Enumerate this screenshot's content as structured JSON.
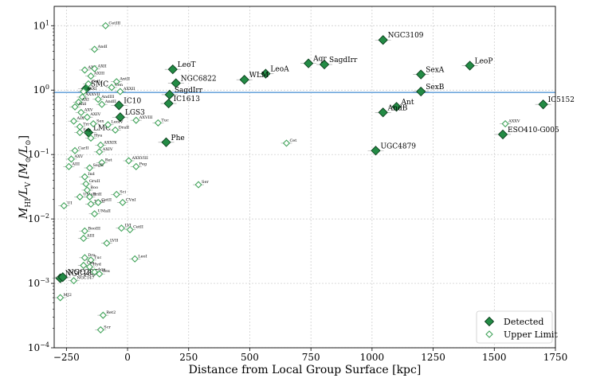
{
  "chart_data": {
    "type": "scatter",
    "xlabel": "Distance from Local Group Surface [kpc]",
    "ylabel_parts": [
      "M",
      "HI",
      "/L",
      "V",
      " [M",
      "⊙",
      "/L",
      "⊙",
      "]"
    ],
    "xlim": [
      -300,
      1750
    ],
    "ylim_log10": [
      -4,
      1.3
    ],
    "x_ticks": [
      -250,
      0,
      250,
      500,
      750,
      1000,
      1250,
      1500,
      1750
    ],
    "y_ticks": [
      {
        "exp": -4,
        "label_base": "10",
        "label_exp": "−4"
      },
      {
        "exp": -3,
        "label_base": "10",
        "label_exp": "−3"
      },
      {
        "exp": -2,
        "label_base": "10",
        "label_exp": "−2"
      },
      {
        "exp": -1,
        "label_base": "10",
        "label_exp": "−1"
      },
      {
        "exp": 0,
        "label_base": "10",
        "label_exp": "0"
      },
      {
        "exp": 1,
        "label_base": "10",
        "label_exp": "1"
      }
    ],
    "reference_line_y": 0.92,
    "grid": true,
    "legend_position": "bottom-right",
    "colors": {
      "detected_fill": "#238b45",
      "detected_edge": "#0b3d1c",
      "limit_edge": "#41a35a",
      "reference_line": "#6fa8dc",
      "error_bar": "#999999"
    },
    "series": [
      {
        "name": "Detected",
        "marker": "filled-diamond",
        "points": [
          {
            "label": "NGC3109",
            "x": 1045,
            "y": 6.0
          },
          {
            "label": "LeoP",
            "x": 1400,
            "y": 2.4
          },
          {
            "label": "SagdIrr",
            "x": 805,
            "y": 2.5
          },
          {
            "label": "Aqr",
            "x": 740,
            "y": 2.6
          },
          {
            "label": "LeoA",
            "x": 565,
            "y": 1.8
          },
          {
            "label": "WLM",
            "x": 478,
            "y": 1.45
          },
          {
            "label": "SexA",
            "x": 1200,
            "y": 1.75
          },
          {
            "label": "SexB",
            "x": 1200,
            "y": 0.95
          },
          {
            "label": "LeoT",
            "x": 185,
            "y": 2.1
          },
          {
            "label": "NGC6822",
            "x": 198,
            "y": 1.28
          },
          {
            "label": "SagdIrr",
            "x": 172,
            "y": 0.85
          },
          {
            "label": "IC1613",
            "x": 168,
            "y": 0.62
          },
          {
            "label": "Phe",
            "x": 158,
            "y": 0.155
          },
          {
            "label": "IC10",
            "x": -35,
            "y": 0.58
          },
          {
            "label": "LGS3",
            "x": -30,
            "y": 0.38
          },
          {
            "label": "SMC",
            "x": -170,
            "y": 1.05
          },
          {
            "label": "LMC",
            "x": -160,
            "y": 0.22
          },
          {
            "label": "Ant",
            "x": 1100,
            "y": 0.55
          },
          {
            "label": "AndB",
            "x": 1045,
            "y": 0.45
          },
          {
            "label": "UGC4879",
            "x": 1015,
            "y": 0.115
          },
          {
            "label": "IC5152",
            "x": 1700,
            "y": 0.6
          },
          {
            "label": "ESO410-G005",
            "x": 1535,
            "y": 0.205
          },
          {
            "label": "NGC185",
            "x": -275,
            "y": 0.0012
          },
          {
            "label": "NGC205",
            "x": -265,
            "y": 0.00125
          }
        ]
      },
      {
        "name": "Upper Limit",
        "marker": "open-diamond",
        "points": [
          {
            "label": "CetIII",
            "x": -90,
            "y": 10.0
          },
          {
            "label": "AndI",
            "x": -135,
            "y": 4.3
          },
          {
            "label": "AXX",
            "x": -175,
            "y": 2.05
          },
          {
            "label": "AXII",
            "x": -135,
            "y": 2.15
          },
          {
            "label": "AXIII",
            "x": -150,
            "y": 1.65
          },
          {
            "label": "CetI",
            "x": -160,
            "y": 1.25
          },
          {
            "label": "AntII",
            "x": -45,
            "y": 1.35
          },
          {
            "label": "Cen",
            "x": -65,
            "y": 1.1
          },
          {
            "label": "AXXII",
            "x": -30,
            "y": 0.95
          },
          {
            "label": "AXXI",
            "x": -180,
            "y": 0.95
          },
          {
            "label": "AXXVII",
            "x": -185,
            "y": 0.78
          },
          {
            "label": "AXI",
            "x": -200,
            "y": 0.65
          },
          {
            "label": "And",
            "x": -215,
            "y": 0.55
          },
          {
            "label": "AXV",
            "x": -190,
            "y": 0.45
          },
          {
            "label": "AXIV",
            "x": -165,
            "y": 0.38
          },
          {
            "label": "AIX",
            "x": -220,
            "y": 0.33
          },
          {
            "label": "AXVIII",
            "x": 35,
            "y": 0.34
          },
          {
            "label": "AndIII",
            "x": -120,
            "y": 0.72
          },
          {
            "label": "AndII",
            "x": -105,
            "y": 0.6
          },
          {
            "label": "Tri",
            "x": -195,
            "y": 0.27
          },
          {
            "label": "LeoIV",
            "x": -80,
            "y": 0.29
          },
          {
            "label": "DraII",
            "x": -50,
            "y": 0.24
          },
          {
            "label": "Sex",
            "x": -140,
            "y": 0.3
          },
          {
            "label": "Tuc",
            "x": 125,
            "y": 0.31
          },
          {
            "label": "Sag",
            "x": -195,
            "y": 0.22
          },
          {
            "label": "Hya",
            "x": -150,
            "y": 0.18
          },
          {
            "label": "AXXIX",
            "x": -110,
            "y": 0.14
          },
          {
            "label": "CarII",
            "x": -215,
            "y": 0.115
          },
          {
            "label": "AXIV",
            "x": -115,
            "y": 0.11
          },
          {
            "label": "AXV",
            "x": -230,
            "y": 0.085
          },
          {
            "label": "Ret",
            "x": -105,
            "y": 0.075
          },
          {
            "label": "AXXVIII",
            "x": 5,
            "y": 0.08
          },
          {
            "label": "Peg",
            "x": 35,
            "y": 0.065
          },
          {
            "label": "AIII",
            "x": -240,
            "y": 0.065
          },
          {
            "label": "SegII",
            "x": -155,
            "y": 0.062
          },
          {
            "label": "Cet",
            "x": 650,
            "y": 0.15
          },
          {
            "label": "Ind",
            "x": -175,
            "y": 0.045
          },
          {
            "label": "GruII",
            "x": -170,
            "y": 0.035
          },
          {
            "label": "Ser",
            "x": 290,
            "y": 0.034
          },
          {
            "label": "Boo",
            "x": -165,
            "y": 0.028
          },
          {
            "label": "UMaII",
            "x": -195,
            "y": 0.022
          },
          {
            "label": "TriII",
            "x": -155,
            "y": 0.022
          },
          {
            "label": "Sci",
            "x": -45,
            "y": 0.024
          },
          {
            "label": "CVnI",
            "x": -20,
            "y": 0.018
          },
          {
            "label": "TucII",
            "x": -150,
            "y": 0.017
          },
          {
            "label": "UI",
            "x": -260,
            "y": 0.016
          },
          {
            "label": "CetII",
            "x": -120,
            "y": 0.018
          },
          {
            "label": "UMaII",
            "x": -135,
            "y": 0.012
          },
          {
            "label": "LVI",
            "x": -25,
            "y": 0.0072
          },
          {
            "label": "CetII",
            "x": 10,
            "y": 0.0068
          },
          {
            "label": "BooIII",
            "x": -175,
            "y": 0.0065
          },
          {
            "label": "AIII",
            "x": -180,
            "y": 0.005
          },
          {
            "label": "LVII",
            "x": -85,
            "y": 0.0042
          },
          {
            "label": "Dra",
            "x": -175,
            "y": 0.0025
          },
          {
            "label": "Tuc",
            "x": -150,
            "y": 0.0023
          },
          {
            "label": "LeoI",
            "x": 30,
            "y": 0.0024
          },
          {
            "label": "Car",
            "x": -180,
            "y": 0.0019
          },
          {
            "label": "Hyd",
            "x": -155,
            "y": 0.0018
          },
          {
            "label": "Aqu",
            "x": -135,
            "y": 0.0015
          },
          {
            "label": "NGC147",
            "x": -220,
            "y": 0.0011
          },
          {
            "label": "Sex",
            "x": -115,
            "y": 0.0014
          },
          {
            "label": "MJ2",
            "x": -275,
            "y": 0.0006
          },
          {
            "label": "Ret2",
            "x": -100,
            "y": 0.00032
          },
          {
            "label": "Scr",
            "x": -110,
            "y": 0.00019
          },
          {
            "label": "AXXV",
            "x": 1545,
            "y": 0.3
          }
        ]
      }
    ],
    "legend": [
      {
        "label": "Detected",
        "marker": "filled-diamond"
      },
      {
        "label": "Upper Limit",
        "marker": "open-diamond"
      }
    ]
  }
}
